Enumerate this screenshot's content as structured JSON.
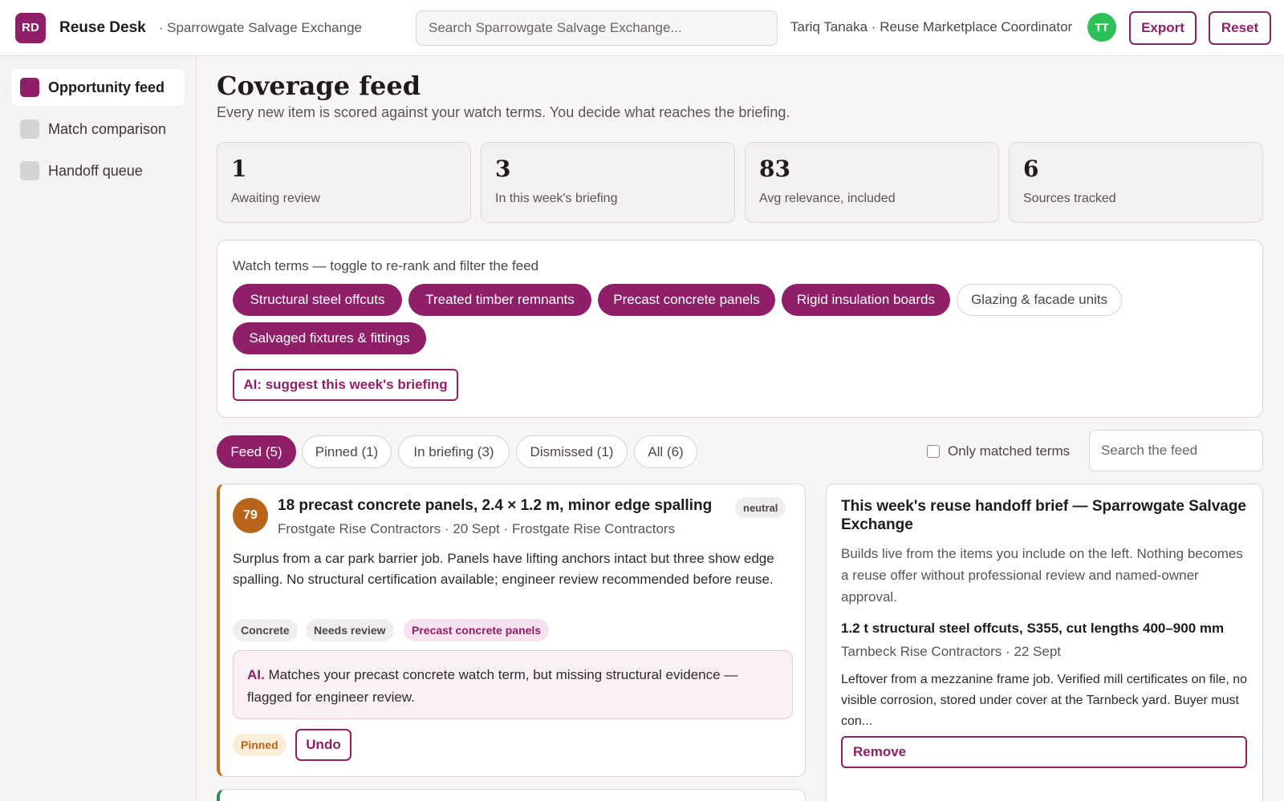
{
  "app": {
    "logo_initials": "RD",
    "name": "Reuse Desk",
    "org": "· Sparrowgate Salvage Exchange",
    "search_placeholder": "Search Sparrowgate Salvage Exchange...",
    "user": "Tariq Tanaka · Reuse Marketplace Coordinator",
    "user_initials": "TT",
    "export_label": "Export",
    "reset_label": "Reset",
    "accent": "#8f1f68"
  },
  "sidebar": {
    "items": [
      {
        "label": "Opportunity feed",
        "active": true
      },
      {
        "label": "Match comparison",
        "active": false
      },
      {
        "label": "Handoff queue",
        "active": false
      }
    ]
  },
  "page": {
    "title": "Coverage feed",
    "subtitle": "Every new item is scored against your watch terms. You decide what reaches the briefing."
  },
  "stats": [
    {
      "value": "1",
      "label": "Awaiting review"
    },
    {
      "value": "3",
      "label": "In this week's briefing"
    },
    {
      "value": "83",
      "label": "Avg relevance, included"
    },
    {
      "value": "6",
      "label": "Sources tracked"
    }
  ],
  "watch_terms": {
    "title": "Watch terms — toggle to re-rank and filter the feed",
    "terms": [
      {
        "label": "Structural steel offcuts",
        "on": true
      },
      {
        "label": "Treated timber remnants",
        "on": true
      },
      {
        "label": "Precast concrete panels",
        "on": true
      },
      {
        "label": "Rigid insulation boards",
        "on": true
      },
      {
        "label": "Glazing & facade units",
        "on": false
      },
      {
        "label": "Salvaged fixtures & fittings",
        "on": true
      }
    ],
    "ai_button": "AI: suggest this week's briefing"
  },
  "tabs": [
    {
      "label": "Feed (5)",
      "active": true
    },
    {
      "label": "Pinned (1)",
      "active": false
    },
    {
      "label": "In briefing (3)",
      "active": false
    },
    {
      "label": "Dismissed (1)",
      "active": false
    },
    {
      "label": "All (6)",
      "active": false
    }
  ],
  "filters": {
    "only_matched_label": "Only matched terms",
    "only_matched_checked": false,
    "feed_search_placeholder": "Search the feed"
  },
  "feed_item": {
    "score": "79",
    "title": "18 precast concrete panels, 2.4 × 1.2 m, minor edge spalling",
    "sentiment": "neutral",
    "meta": "Frostgate Rise Contractors · 20 Sept · Frostgate Rise Contractors",
    "body": "Surplus from a car park barrier job. Panels have lifting anchors intact but three show edge spalling. No structural certification available; engineer review recommended before reuse.",
    "tags": [
      "Concrete",
      "Needs review",
      "Precast concrete panels"
    ],
    "ai_prefix": "AI.",
    "ai_note": "Matches your precast concrete watch term, but missing structural evidence — flagged for engineer review.",
    "status": "Pinned",
    "undo_label": "Undo"
  },
  "brief": {
    "title": "This week's reuse handoff brief — Sparrowgate Salvage Exchange",
    "description": "Builds live from the items you include on the left. Nothing becomes a reuse offer without professional review and named-owner approval.",
    "item": {
      "title": "1.2 t structural steel offcuts, S355, cut lengths 400–900 mm",
      "meta": "Tarnbeck Rise Contractors · 22 Sept",
      "body": "Leftover from a mezzanine frame job. Verified mill certificates on file, no visible corrosion, stored under cover at the Tarnbeck yard. Buyer must con...",
      "remove_label": "Remove"
    }
  }
}
